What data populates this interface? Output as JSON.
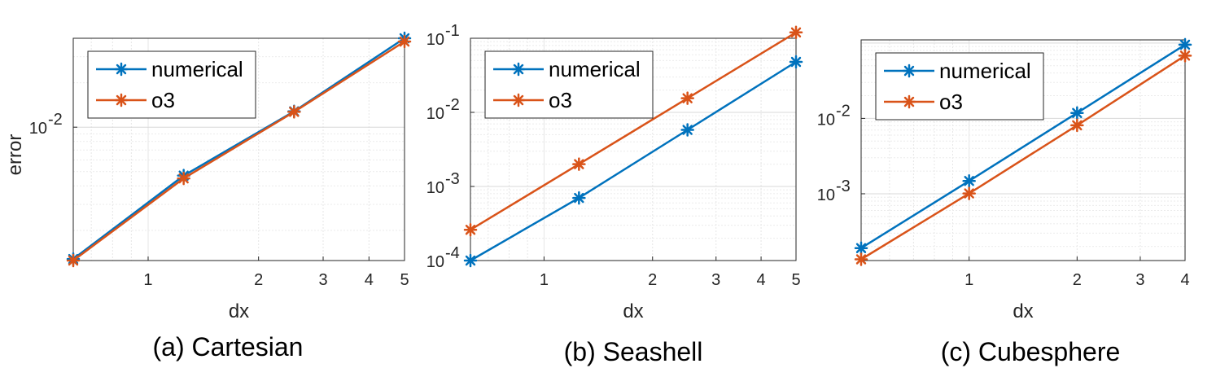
{
  "chart_data": [
    {
      "type": "line",
      "scale": "log-log",
      "caption": "(a) Cartesian",
      "xlabel": "dx",
      "ylabel": "error",
      "xlim": [
        0.625,
        5
      ],
      "ylim": [
        0.00125,
        0.04
      ],
      "xticks": [
        {
          "v": 1,
          "label": "1"
        },
        {
          "v": 2,
          "label": "2"
        },
        {
          "v": 3,
          "label": "3"
        },
        {
          "v": 4,
          "label": "4"
        },
        {
          "v": 5,
          "label": "5"
        }
      ],
      "yticks": [
        {
          "v": 0.01,
          "base": "10",
          "exp": "-2"
        }
      ],
      "grid": true,
      "legend_position": "top-left",
      "series": [
        {
          "name": "numerical",
          "color": "#0072bd",
          "x": [
            0.625,
            1.25,
            2.5,
            5
          ],
          "y": [
            0.00128,
            0.0047,
            0.0128,
            0.04
          ]
        },
        {
          "name": "o3",
          "color": "#d95319",
          "x": [
            0.625,
            1.25,
            2.5,
            5
          ],
          "y": [
            0.00125,
            0.0045,
            0.0127,
            0.038
          ]
        }
      ]
    },
    {
      "type": "line",
      "scale": "log-log",
      "caption": "(b) Seashell",
      "xlabel": "dx",
      "ylabel": "",
      "xlim": [
        0.625,
        5
      ],
      "ylim": [
        0.0001,
        0.1
      ],
      "xticks": [
        {
          "v": 1,
          "label": "1"
        },
        {
          "v": 2,
          "label": "2"
        },
        {
          "v": 3,
          "label": "3"
        },
        {
          "v": 4,
          "label": "4"
        },
        {
          "v": 5,
          "label": "5"
        }
      ],
      "yticks": [
        {
          "v": 0.0001,
          "base": "10",
          "exp": "-4"
        },
        {
          "v": 0.001,
          "base": "10",
          "exp": "-3"
        },
        {
          "v": 0.01,
          "base": "10",
          "exp": "-2"
        },
        {
          "v": 0.1,
          "base": "10",
          "exp": "-1"
        }
      ],
      "grid": true,
      "legend_position": "top-left",
      "series": [
        {
          "name": "numerical",
          "color": "#0072bd",
          "x": [
            0.625,
            1.25,
            2.5,
            5
          ],
          "y": [
            0.0001,
            0.0007,
            0.0058,
            0.048
          ]
        },
        {
          "name": "o3",
          "color": "#d95319",
          "x": [
            0.625,
            1.25,
            2.5,
            5
          ],
          "y": [
            0.00026,
            0.002,
            0.0155,
            0.12
          ]
        }
      ]
    },
    {
      "type": "line",
      "scale": "log-log",
      "caption": "(c) Cubesphere",
      "xlabel": "dx",
      "ylabel": "",
      "xlim": [
        0.5,
        4
      ],
      "ylim": [
        0.00013,
        0.11
      ],
      "xticks": [
        {
          "v": 1,
          "label": "1"
        },
        {
          "v": 2,
          "label": "2"
        },
        {
          "v": 3,
          "label": "3"
        },
        {
          "v": 4,
          "label": "4"
        }
      ],
      "yticks": [
        {
          "v": 0.001,
          "base": "10",
          "exp": "-3"
        },
        {
          "v": 0.01,
          "base": "10",
          "exp": "-2"
        }
      ],
      "grid": true,
      "legend_position": "top-left",
      "series": [
        {
          "name": "numerical",
          "color": "#0072bd",
          "x": [
            0.5,
            1,
            2,
            4
          ],
          "y": [
            0.00019,
            0.00148,
            0.0118,
            0.095
          ]
        },
        {
          "name": "o3",
          "color": "#d95319",
          "x": [
            0.5,
            1,
            2,
            4
          ],
          "y": [
            0.000135,
            0.00101,
            0.0081,
            0.068
          ]
        }
      ]
    }
  ]
}
